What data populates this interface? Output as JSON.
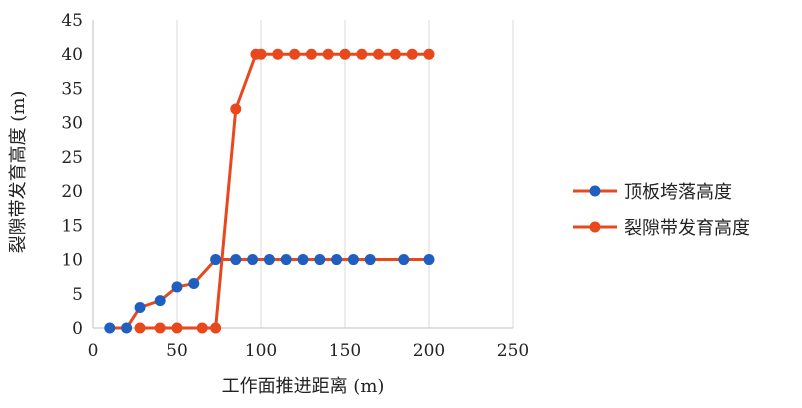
{
  "chart_data": {
    "type": "line",
    "xlabel": "工作面推进距离 (m)",
    "ylabel": "裂隙带发育高度 (m)",
    "xlim": [
      0,
      250
    ],
    "ylim": [
      0,
      45
    ],
    "x_ticks": [
      0,
      50,
      100,
      150,
      200,
      250
    ],
    "y_ticks": [
      0,
      5,
      10,
      15,
      20,
      25,
      30,
      35,
      40,
      45
    ],
    "grid": "vertical",
    "legend_position": "right",
    "series": [
      {
        "name": "顶板垮落高度",
        "color": "#1f5fbf",
        "line_color": "#e8481c",
        "points": [
          [
            10,
            0
          ],
          [
            20,
            0
          ],
          [
            28,
            3
          ],
          [
            40,
            4
          ],
          [
            50,
            6
          ],
          [
            60,
            6.5
          ],
          [
            73,
            10
          ],
          [
            85,
            10
          ],
          [
            95,
            10
          ],
          [
            105,
            10
          ],
          [
            115,
            10
          ],
          [
            125,
            10
          ],
          [
            135,
            10
          ],
          [
            145,
            10
          ],
          [
            155,
            10
          ],
          [
            165,
            10
          ],
          [
            185,
            10
          ],
          [
            200,
            10
          ]
        ]
      },
      {
        "name": "裂隙带发育高度",
        "color": "#e8481c",
        "line_color": "#e8481c",
        "points": [
          [
            28,
            0
          ],
          [
            40,
            0
          ],
          [
            50,
            0
          ],
          [
            65,
            0
          ],
          [
            73,
            0
          ],
          [
            85,
            32
          ],
          [
            97,
            40
          ],
          [
            100,
            40
          ],
          [
            110,
            40
          ],
          [
            120,
            40
          ],
          [
            130,
            40
          ],
          [
            140,
            40
          ],
          [
            150,
            40
          ],
          [
            160,
            40
          ],
          [
            170,
            40
          ],
          [
            180,
            40
          ],
          [
            190,
            40
          ],
          [
            200,
            40
          ]
        ]
      }
    ]
  }
}
